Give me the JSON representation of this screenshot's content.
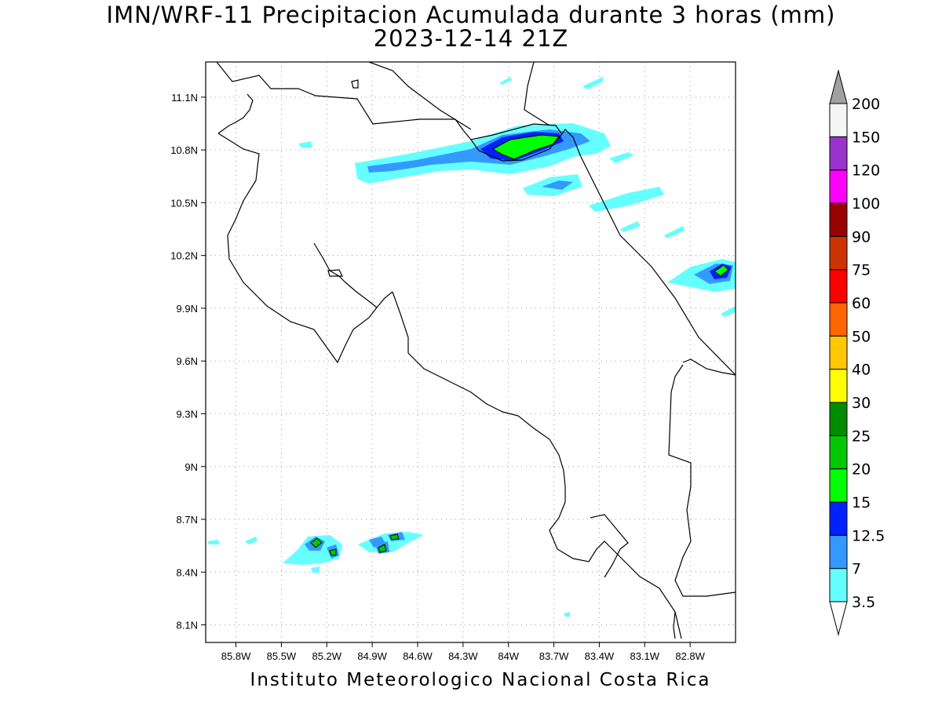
{
  "header": {
    "title_line1": "IMN/WRF-11 Precipitacion Acumulada durante 3 horas (mm)",
    "title_line2": "2023-12-14 21Z"
  },
  "footer": {
    "credit": "Instituto Meteorologico Nacional Costa Rica"
  },
  "map": {
    "lon_range": [
      -86.0,
      -82.5
    ],
    "lat_range": [
      8.0,
      11.3
    ],
    "grid": true,
    "lat_ticks": [
      "11.1N",
      "10.8N",
      "10.5N",
      "10.2N",
      "9.9N",
      "9.6N",
      "9.3N",
      "9N",
      "8.7N",
      "8.4N",
      "8.1N"
    ],
    "lon_ticks": [
      "85.8W",
      "85.5W",
      "85.2W",
      "84.9W",
      "84.6W",
      "84.3W",
      "84W",
      "83.7W",
      "83.4W",
      "83.1W",
      "82.8W"
    ]
  },
  "colorbar": {
    "labels": [
      "3.5",
      "7",
      "12.5",
      "15",
      "20",
      "25",
      "30",
      "40",
      "50",
      "60",
      "75",
      "90",
      "100",
      "120",
      "150",
      "200"
    ],
    "colors": [
      "#ffffff",
      "#66ffff",
      "#3399ff",
      "#0022ff",
      "#00ff00",
      "#00c800",
      "#008c00",
      "#ffff00",
      "#ffc800",
      "#ff6600",
      "#ff0000",
      "#cc3300",
      "#990000",
      "#ff00ff",
      "#9933cc",
      "#f5f5f5"
    ],
    "over_color": "#a0a0a0",
    "under_color": "#ffffff"
  }
}
